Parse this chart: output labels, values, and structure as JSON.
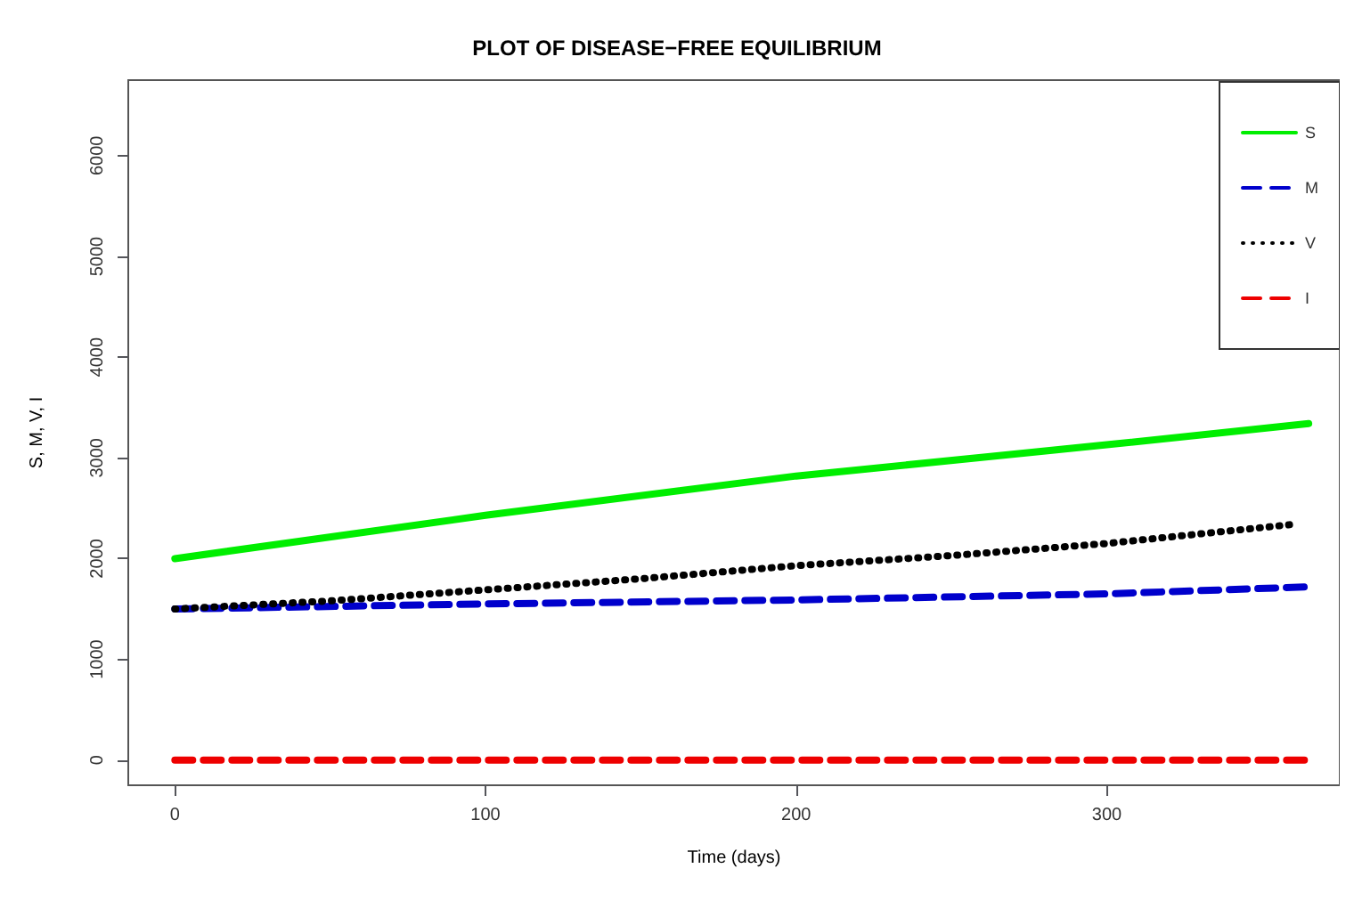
{
  "chart_data": {
    "type": "line",
    "title": "PLOT OF DISEASE−FREE EQUILIBRIUM",
    "xlabel": "Time (days)",
    "ylabel": "S, M, V, I",
    "xlim": [
      -15,
      375
    ],
    "xticks": [
      0,
      100,
      200,
      300
    ],
    "ylim": [
      -250,
      6750
    ],
    "yticks": [
      0,
      1000,
      2000,
      3000,
      4000,
      5000,
      6000
    ],
    "grid": false,
    "legend": "top right",
    "marker": "none",
    "series": [
      {
        "name": "S",
        "color": "#00ee00",
        "line_style": "solid",
        "x": [
          0,
          100,
          200,
          300,
          365
        ],
        "values": [
          2000,
          2430,
          2820,
          3130,
          3340
        ]
      },
      {
        "name": "M",
        "color": "#0000cc",
        "line_style": "dashed",
        "x": [
          0,
          100,
          200,
          300,
          365
        ],
        "values": [
          1500,
          1550,
          1590,
          1650,
          1720
        ]
      },
      {
        "name": "V",
        "color": "#000000",
        "line_style": "dotted",
        "x": [
          0,
          50,
          100,
          150,
          200,
          250,
          300,
          360
        ],
        "values": [
          1500,
          1580,
          1690,
          1800,
          1930,
          2030,
          2150,
          2340
        ]
      },
      {
        "name": "I",
        "color": "#ee0000",
        "line_style": "dashed",
        "x": [
          0,
          365
        ],
        "values": [
          0,
          0
        ]
      }
    ]
  }
}
